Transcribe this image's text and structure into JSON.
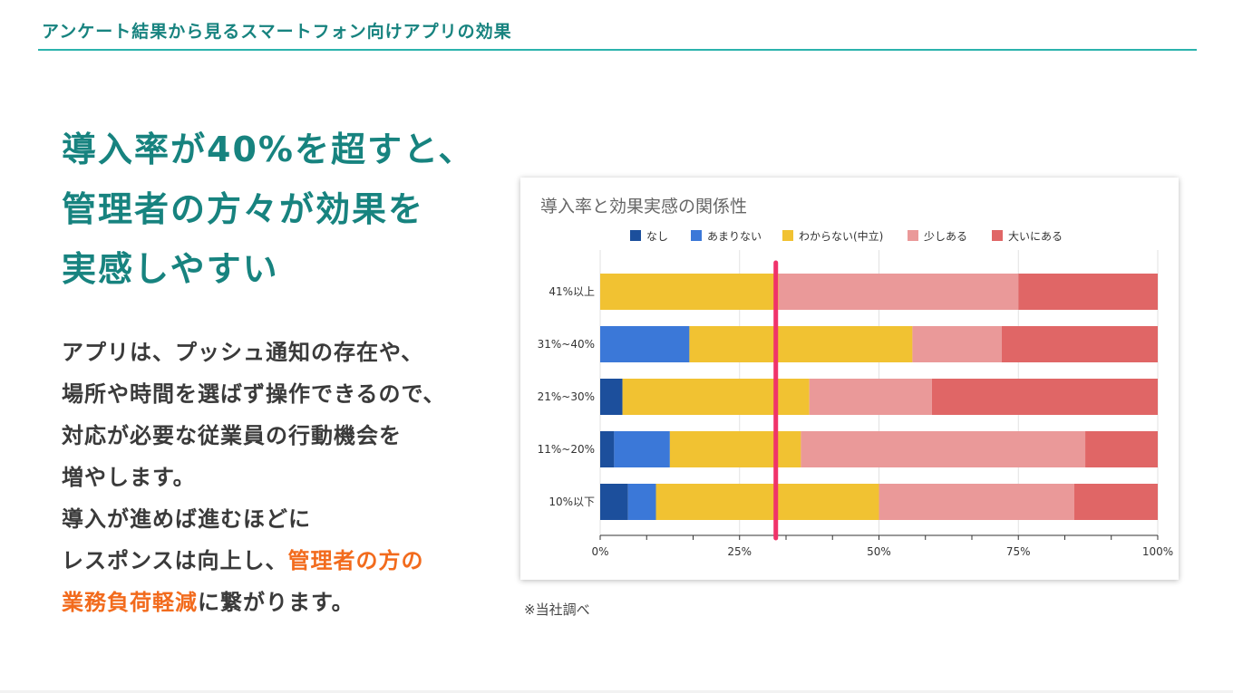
{
  "header": {
    "title": "アンケート結果から見るスマートフォン向けアプリの効果"
  },
  "headline": {
    "lines": [
      "導入率が40%を超すと、",
      "管理者の方々が効果を",
      "実感しやすい"
    ]
  },
  "body": {
    "line1": "アプリは、プッシュ通知の存在や、",
    "line2": "場所や時間を選ばず操作できるので、",
    "line3": "対応が必要な従業員の行動機会を",
    "line4": "増やします。",
    "line5": "導入が進めば進むほどに",
    "line6_plain": "レスポンスは向上し、",
    "line6_highlight": "管理者の方の",
    "line7_highlight": "業務負荷軽減",
    "line7_plain": "に繋がります。"
  },
  "colors": {
    "accent": "#17837f",
    "highlight": "#f26b1d",
    "marker": "#f0336a"
  },
  "chart_data": {
    "type": "bar",
    "orientation": "horizontal",
    "stacked": "percent",
    "title": "導入率と効果実感の関係性",
    "categories": [
      "41%以上",
      "31%~40%",
      "21%~30%",
      "11%~20%",
      "10%以下"
    ],
    "series": [
      {
        "name": "なし",
        "color": "#1c4f9c",
        "values": [
          0,
          0,
          4,
          2.5,
          5
        ]
      },
      {
        "name": "あまりない",
        "color": "#3b78d8",
        "values": [
          0,
          16,
          0,
          10,
          5
        ]
      },
      {
        "name": "わからない(中立)",
        "color": "#f1c232",
        "values": [
          32,
          40,
          33.5,
          23.5,
          40
        ]
      },
      {
        "name": "少しある",
        "color": "#ea9999",
        "values": [
          43,
          16,
          22,
          51,
          35
        ]
      },
      {
        "name": "大いにある",
        "color": "#e06666",
        "values": [
          25,
          28,
          40.5,
          13,
          15
        ]
      }
    ],
    "xlim": [
      0,
      100
    ],
    "xticks": [
      "0%",
      "25%",
      "50%",
      "75%",
      "100%"
    ],
    "reference_line": {
      "value": 31.5,
      "color": "#f0336a"
    },
    "legend": "top",
    "grid": true
  },
  "note": "※当社調べ"
}
